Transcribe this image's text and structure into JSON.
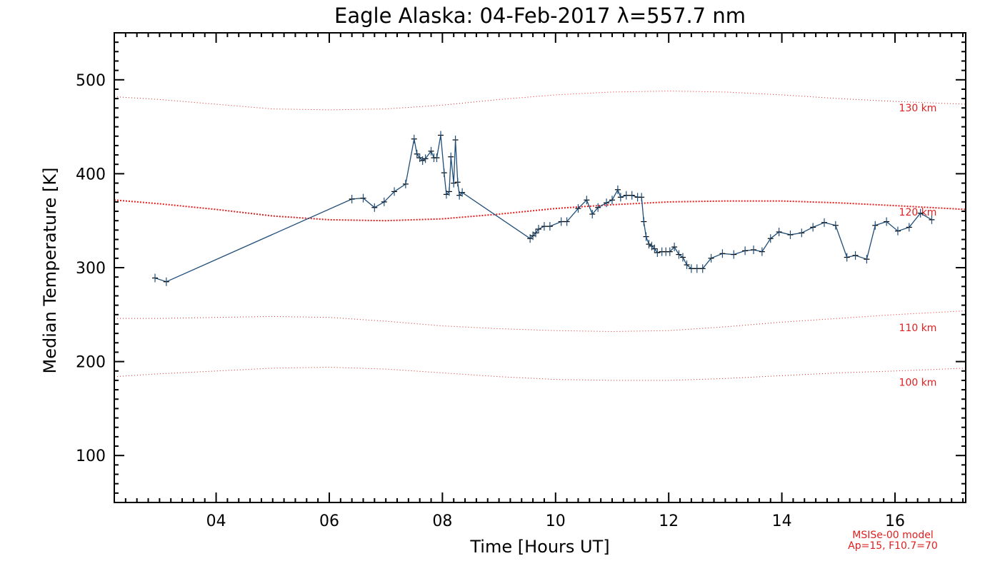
{
  "chart_data": {
    "type": "line",
    "title": "Eagle Alaska: 04-Feb-2017 λ=557.7 nm",
    "xlabel": "Time [Hours UT]",
    "ylabel": "Median Temperature [K]",
    "xlim": [
      2.2,
      17.25
    ],
    "ylim": [
      50,
      550
    ],
    "xticks": [
      4,
      6,
      8,
      10,
      12,
      14,
      16
    ],
    "xtick_labels": [
      "04",
      "06",
      "08",
      "10",
      "12",
      "14",
      "16"
    ],
    "yticks": [
      100,
      200,
      300,
      400,
      500
    ],
    "ytick_labels": [
      "100",
      "200",
      "300",
      "400",
      "500"
    ],
    "grid": false,
    "colors": {
      "series": "#1f4e79",
      "marker": "#000000",
      "model": "#e02020",
      "axis": "#000000"
    },
    "series": [
      {
        "x": [
          2.92,
          3.12,
          6.4,
          6.6,
          6.8,
          6.97,
          7.15,
          7.35,
          7.5,
          7.55,
          7.6,
          7.65,
          7.7,
          7.8,
          7.85,
          7.9,
          7.97,
          8.03,
          8.07,
          8.12,
          8.15,
          8.2,
          8.23,
          8.27,
          8.3,
          8.35,
          9.55,
          9.6,
          9.65,
          9.7,
          9.8,
          9.9,
          10.1,
          10.2,
          10.4,
          10.55,
          10.65,
          10.75,
          10.9,
          11.0,
          11.1,
          11.15,
          11.25,
          11.35,
          11.45,
          11.52,
          11.56,
          11.6,
          11.65,
          11.7,
          11.75,
          11.8,
          11.88,
          11.95,
          12.02,
          12.1,
          12.18,
          12.25,
          12.32,
          12.4,
          12.5,
          12.6,
          12.75,
          12.95,
          13.15,
          13.35,
          13.5,
          13.65,
          13.8,
          13.95,
          14.15,
          14.35,
          14.55,
          14.75,
          14.95,
          15.15,
          15.3,
          15.5,
          15.65,
          15.85,
          16.05,
          16.25,
          16.45,
          16.65
        ],
        "y": [
          289,
          285,
          373,
          374,
          364,
          370,
          381,
          389,
          437,
          421,
          417,
          414,
          416,
          424,
          417,
          417,
          441,
          401,
          378,
          381,
          418,
          390,
          436,
          391,
          377,
          380,
          331,
          334,
          337,
          341,
          344,
          344,
          349,
          349,
          363,
          372,
          357,
          364,
          369,
          372,
          383,
          375,
          377,
          377,
          375,
          375,
          349,
          333,
          325,
          323,
          320,
          316,
          317,
          317,
          317,
          322,
          314,
          311,
          303,
          299,
          299,
          299,
          310,
          315,
          314,
          318,
          319,
          317,
          331,
          338,
          335,
          337,
          343,
          348,
          345,
          311,
          313,
          309,
          345,
          349,
          339,
          343,
          358,
          351
        ]
      }
    ],
    "model_curves": [
      {
        "name": "130 km",
        "x": [
          2.2,
          3.0,
          4.0,
          5.0,
          6.0,
          7.0,
          8.0,
          9.0,
          10.0,
          11.0,
          12.0,
          13.0,
          14.0,
          15.0,
          16.0,
          17.25
        ],
        "y": [
          482,
          479,
          474,
          469,
          468,
          469,
          473,
          479,
          484,
          487,
          488,
          487,
          484,
          480,
          477,
          474
        ]
      },
      {
        "name": "120 km",
        "x": [
          2.2,
          3.0,
          4.0,
          5.0,
          6.0,
          7.0,
          8.0,
          9.0,
          10.0,
          11.0,
          12.0,
          13.0,
          14.0,
          15.0,
          16.0,
          17.25
        ],
        "y": [
          372,
          368,
          362,
          355,
          351,
          350,
          352,
          357,
          363,
          367,
          370,
          371,
          371,
          369,
          366,
          362
        ]
      },
      {
        "name": "110 km",
        "x": [
          2.2,
          3.0,
          4.0,
          5.0,
          6.0,
          7.0,
          8.0,
          9.0,
          10.0,
          11.0,
          12.0,
          13.0,
          14.0,
          15.0,
          16.0,
          17.25
        ],
        "y": [
          246,
          246,
          247,
          248,
          247,
          243,
          238,
          235,
          233,
          232,
          233,
          237,
          242,
          246,
          250,
          254
        ]
      },
      {
        "name": "100 km",
        "x": [
          2.2,
          3.0,
          4.0,
          5.0,
          6.0,
          7.0,
          8.0,
          9.0,
          10.0,
          11.0,
          12.0,
          13.0,
          14.0,
          15.0,
          16.0,
          17.25
        ],
        "y": [
          184,
          187,
          190,
          193,
          194,
          192,
          188,
          184,
          181,
          180,
          180,
          182,
          185,
          188,
          190,
          193
        ]
      }
    ],
    "model_note_lines": [
      "MSISe-00 model",
      "Ap=15, F10.7=70"
    ]
  }
}
